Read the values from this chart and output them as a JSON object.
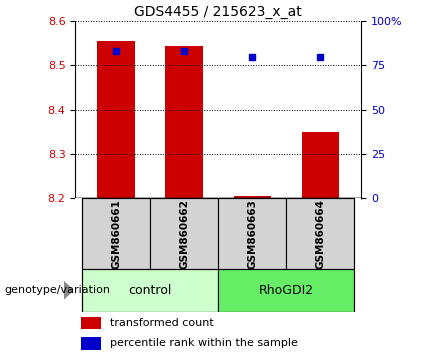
{
  "title": "GDS4455 / 215623_x_at",
  "samples": [
    "GSM860661",
    "GSM860662",
    "GSM860663",
    "GSM860664"
  ],
  "groups": [
    "control",
    "control",
    "RhoGDI2",
    "RhoGDI2"
  ],
  "bar_bottom": 8.2,
  "bar_values": [
    8.555,
    8.545,
    8.205,
    8.35
  ],
  "percentile_pcts": [
    83,
    83,
    80,
    80
  ],
  "ylim_left": [
    8.2,
    8.6
  ],
  "ylim_right": [
    0,
    100
  ],
  "yticks_left": [
    8.2,
    8.3,
    8.4,
    8.5,
    8.6
  ],
  "yticks_right": [
    0,
    25,
    50,
    75,
    100
  ],
  "ytick_right_labels": [
    "0",
    "25",
    "50",
    "75",
    "100%"
  ],
  "bar_color": "#cc0000",
  "dot_color": "#0000cc",
  "bar_width": 0.55,
  "legend_red_label": "transformed count",
  "legend_blue_label": "percentile rank within the sample",
  "group_label": "genotype/variation",
  "group1_name": "control",
  "group2_name": "RhoGDI2",
  "control_color": "#ccffcc",
  "rhogdi2_color": "#66ee66",
  "sample_box_color": "#d3d3d3"
}
